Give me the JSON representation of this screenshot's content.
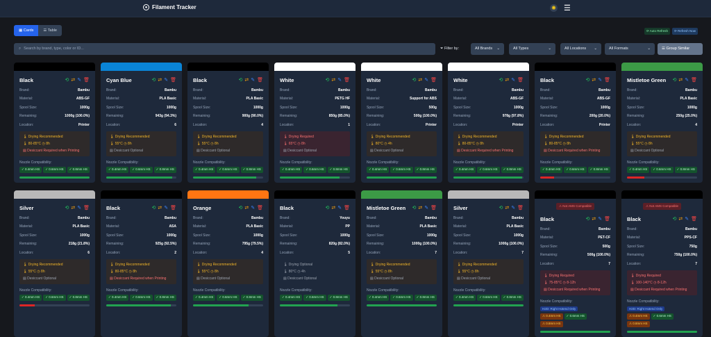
{
  "header": {
    "title": "Filament Tracker",
    "logo_icon": "filament-spool-icon",
    "theme_icon": "sun-icon",
    "menu_icon": "hamburger-icon"
  },
  "toolbar": {
    "cards_label": "Cards",
    "table_label": "Table",
    "auto_refresh": "Auto Refresh",
    "refresh_now": "Refresh Now"
  },
  "search": {
    "placeholder": "Search by brand, type, color or ID..."
  },
  "filters": {
    "label": "Filter by:",
    "brands": "All Brands",
    "types": "All Types",
    "locations": "All Locations",
    "formats": "All Formats",
    "group_similar": "Group Similar"
  },
  "labels": {
    "brand": "Brand:",
    "material": "Material:",
    "spool": "Spool Size:",
    "remaining": "Remaining:",
    "location": "Location:",
    "nozzle": "Nozzle Compatibility:",
    "not_ams": "⚠ Not AMS Compatible"
  },
  "colors": {
    "accent": "#2563eb",
    "ok": "#22a350",
    "low": "#dc2626",
    "recommended": "#f0b429",
    "required": "#f87171"
  },
  "cards": [
    {
      "name": "Black",
      "hex": "#000000",
      "brand": "Bambu",
      "material": "ABS-GF",
      "spool": "1000g",
      "remaining": "1000g (100.0%)",
      "pct": 100,
      "location": "Printer",
      "drying": "Drying Recommended",
      "level": "rec",
      "temp": "80-85°C",
      "time": "8h",
      "desiccant": "Desiccant Required when Printing",
      "desiccant_req": true,
      "nozzles": [
        [
          "0.4mm HS",
          "ok"
        ],
        [
          "0.6mm HS",
          "ok"
        ],
        [
          "0.8mm HS",
          "ok"
        ]
      ]
    },
    {
      "name": "Cyan Blue",
      "hex": "#0a84d6",
      "brand": "Bambu",
      "material": "PLA Basic",
      "spool": "1000g",
      "remaining": "943g (94.3%)",
      "pct": 94.3,
      "location": "6",
      "drying": "Drying Recommended",
      "level": "rec",
      "temp": "55°C",
      "time": "8h",
      "desiccant": "Desiccant Optional",
      "desiccant_req": false,
      "nozzles": [
        [
          "0.4mm HS",
          "ok"
        ],
        [
          "0.6mm HS",
          "ok"
        ],
        [
          "0.8mm HS",
          "ok"
        ]
      ]
    },
    {
      "name": "Black",
      "hex": "#000000",
      "brand": "Bambu",
      "material": "PLA Basic",
      "spool": "1000g",
      "remaining": "900g (90.0%)",
      "pct": 90,
      "location": "4",
      "drying": "Drying Recommended",
      "level": "rec",
      "temp": "55°C",
      "time": "8h",
      "desiccant": "Desiccant Optional",
      "desiccant_req": false,
      "nozzles": [
        [
          "0.4mm HS",
          "ok"
        ],
        [
          "0.6mm HS",
          "ok"
        ],
        [
          "0.8mm HS",
          "ok"
        ]
      ]
    },
    {
      "name": "White",
      "hex": "#ffffff",
      "brand": "Bambu",
      "material": "PETG HF",
      "spool": "1000g",
      "remaining": "850g (85.0%)",
      "pct": 85,
      "location": "1",
      "drying": "Drying Required",
      "level": "req",
      "temp": "65°C",
      "time": "8h",
      "desiccant": "Desiccant Optional",
      "desiccant_req": false,
      "nozzles": [
        [
          "0.4mm HS",
          "ok"
        ],
        [
          "0.6mm HS",
          "ok"
        ],
        [
          "0.8mm HS",
          "ok"
        ]
      ]
    },
    {
      "name": "White",
      "hex": "#ffffff",
      "brand": "Bambu",
      "material": "Support for ABS",
      "spool": "500g",
      "remaining": "500g (100.0%)",
      "pct": 100,
      "location": "Printer",
      "drying": "Drying Recommended",
      "level": "rec",
      "temp": "80°C",
      "time": "4h",
      "desiccant": "Desiccant Optional",
      "desiccant_req": false,
      "nozzles": [
        [
          "0.4mm HS",
          "ok"
        ],
        [
          "0.6mm HS",
          "ok"
        ],
        [
          "0.8mm HS",
          "ok"
        ]
      ]
    },
    {
      "name": "White",
      "hex": "#ffffff",
      "brand": "Bambu",
      "material": "ABS-GF",
      "spool": "1000g",
      "remaining": "978g (97.8%)",
      "pct": 97.8,
      "location": "Printer",
      "drying": "Drying Recommended",
      "level": "rec",
      "temp": "80-85°C",
      "time": "8h",
      "desiccant": "Desiccant Required when Printing",
      "desiccant_req": true,
      "nozzles": [
        [
          "0.4mm HS",
          "ok"
        ],
        [
          "0.6mm HS",
          "ok"
        ],
        [
          "0.8mm HS",
          "ok"
        ]
      ]
    },
    {
      "name": "Black",
      "hex": "#000000",
      "brand": "Bambu",
      "material": "ABS-GF",
      "spool": "1000g",
      "remaining": "200g (20.0%)",
      "pct": 20,
      "location": "Printer",
      "drying": "Drying Recommended",
      "level": "rec",
      "temp": "80-85°C",
      "time": "8h",
      "desiccant": "Desiccant Required when Printing",
      "desiccant_req": true,
      "nozzles": [
        [
          "0.4mm HS",
          "ok"
        ],
        [
          "0.6mm HS",
          "ok"
        ],
        [
          "0.8mm HS",
          "ok"
        ]
      ]
    },
    {
      "name": "Mistletoe Green",
      "hex": "#3c9a46",
      "brand": "Bambu",
      "material": "PLA Basic",
      "spool": "1000g",
      "remaining": "250g (25.0%)",
      "pct": 25,
      "location": "4",
      "drying": "Drying Recommended",
      "level": "rec",
      "temp": "55°C",
      "time": "8h",
      "desiccant": "Desiccant Optional",
      "desiccant_req": false,
      "nozzles": [
        [
          "0.4mm HS",
          "ok"
        ],
        [
          "0.6mm HS",
          "ok"
        ],
        [
          "0.8mm HS",
          "ok"
        ]
      ]
    },
    {
      "name": "Silver",
      "hex": "#b8b8b8",
      "brand": "Bambu",
      "material": "PLA Basic",
      "spool": "1000g",
      "remaining": "218g (21.8%)",
      "pct": 21.8,
      "location": "6",
      "drying": "Drying Recommended",
      "level": "rec",
      "temp": "55°C",
      "time": "8h",
      "desiccant": "Desiccant Optional",
      "desiccant_req": false,
      "nozzles": [
        [
          "0.4mm HS",
          "ok"
        ],
        [
          "0.6mm HS",
          "ok"
        ],
        [
          "0.8mm HS",
          "ok"
        ]
      ]
    },
    {
      "name": "Black",
      "hex": "#000000",
      "brand": "Bambu",
      "material": "ASA",
      "spool": "1000g",
      "remaining": "925g (92.5%)",
      "pct": 92.5,
      "location": "2",
      "drying": "Drying Recommended",
      "level": "rec",
      "temp": "80-85°C",
      "time": "8h",
      "desiccant": "Desiccant Required when Printing",
      "desiccant_req": true,
      "nozzles": [
        [
          "0.4mm HS",
          "ok"
        ],
        [
          "0.6mm HS",
          "ok"
        ],
        [
          "0.8mm HS",
          "ok"
        ]
      ]
    },
    {
      "name": "Orange",
      "hex": "#ff7512",
      "brand": "Bambu",
      "material": "PLA Basic",
      "spool": "1000g",
      "remaining": "795g (79.5%)",
      "pct": 79.5,
      "location": "4",
      "drying": "Drying Recommended",
      "level": "rec",
      "temp": "55°C",
      "time": "8h",
      "desiccant": "Desiccant Optional",
      "desiccant_req": false,
      "nozzles": [
        [
          "0.4mm HS",
          "ok"
        ],
        [
          "0.6mm HS",
          "ok"
        ],
        [
          "0.8mm HS",
          "ok"
        ]
      ]
    },
    {
      "name": "Black",
      "hex": "#000000",
      "brand": "Youyu",
      "material": "PP",
      "spool": "1000g",
      "remaining": "820g (82.0%)",
      "pct": 82,
      "location": "5",
      "drying": "Drying Optional",
      "level": "opt",
      "temp": "80°C",
      "time": "4h",
      "desiccant": "Desiccant Optional",
      "desiccant_req": false,
      "nozzles": [
        [
          "0.4mm HS",
          "ok"
        ],
        [
          "0.6mm HS",
          "ok"
        ],
        [
          "0.8mm HS",
          "ok"
        ]
      ]
    },
    {
      "name": "Mistletoe Green",
      "hex": "#3c9a46",
      "brand": "Bambu",
      "material": "PLA Basic",
      "spool": "1000g",
      "remaining": "1000g (100.0%)",
      "pct": 100,
      "location": "7",
      "drying": "Drying Recommended",
      "level": "rec",
      "temp": "55°C",
      "time": "8h",
      "desiccant": "Desiccant Optional",
      "desiccant_req": false,
      "nozzles": [
        [
          "0.4mm HS",
          "ok"
        ],
        [
          "0.6mm HS",
          "ok"
        ],
        [
          "0.8mm HS",
          "ok"
        ]
      ]
    },
    {
      "name": "Silver",
      "hex": "#b8b8b8",
      "brand": "Bambu",
      "material": "PLA Basic",
      "spool": "1000g",
      "remaining": "1000g (100.0%)",
      "pct": 100,
      "location": "7",
      "drying": "Drying Recommended",
      "level": "rec",
      "temp": "55°C",
      "time": "8h",
      "desiccant": "Desiccant Optional",
      "desiccant_req": false,
      "nozzles": [
        [
          "0.4mm HS",
          "ok"
        ],
        [
          "0.6mm HS",
          "ok"
        ],
        [
          "0.8mm HS",
          "ok"
        ]
      ]
    },
    {
      "name": "Black",
      "hex": "#000000",
      "not_ams": true,
      "hotend": "H2D: Right Hotend Only",
      "brand": "Bambu",
      "material": "PET-CF",
      "spool": "500g",
      "remaining": "500g (100.0%)",
      "pct": 100,
      "location": "7",
      "drying": "Drying Required",
      "level": "req",
      "temp": "75-85°C",
      "time": "8-12h",
      "desiccant": "Desiccant Required when Printing",
      "desiccant_req": true,
      "nozzles": [
        [
          "0.4mm HS",
          "warn"
        ],
        [
          "0.6mm HS",
          "ok"
        ],
        [
          "0.8mm HS",
          "warn"
        ]
      ]
    },
    {
      "name": "Black",
      "hex": "#000000",
      "not_ams": true,
      "hotend": "H2D: Right Hotend Only",
      "brand": "Bambu",
      "material": "PPS-CF",
      "spool": "750g",
      "remaining": "750g (100.0%)",
      "pct": 100,
      "location": "7",
      "drying": "Drying Required",
      "level": "req",
      "temp": "100-140°C",
      "time": "8-12h",
      "desiccant": "Desiccant Required when Printing",
      "desiccant_req": true,
      "nozzles": [
        [
          "0.4mm HS",
          "warn"
        ],
        [
          "0.6mm HS",
          "ok"
        ],
        [
          "0.8mm HS",
          "warn"
        ]
      ]
    }
  ]
}
